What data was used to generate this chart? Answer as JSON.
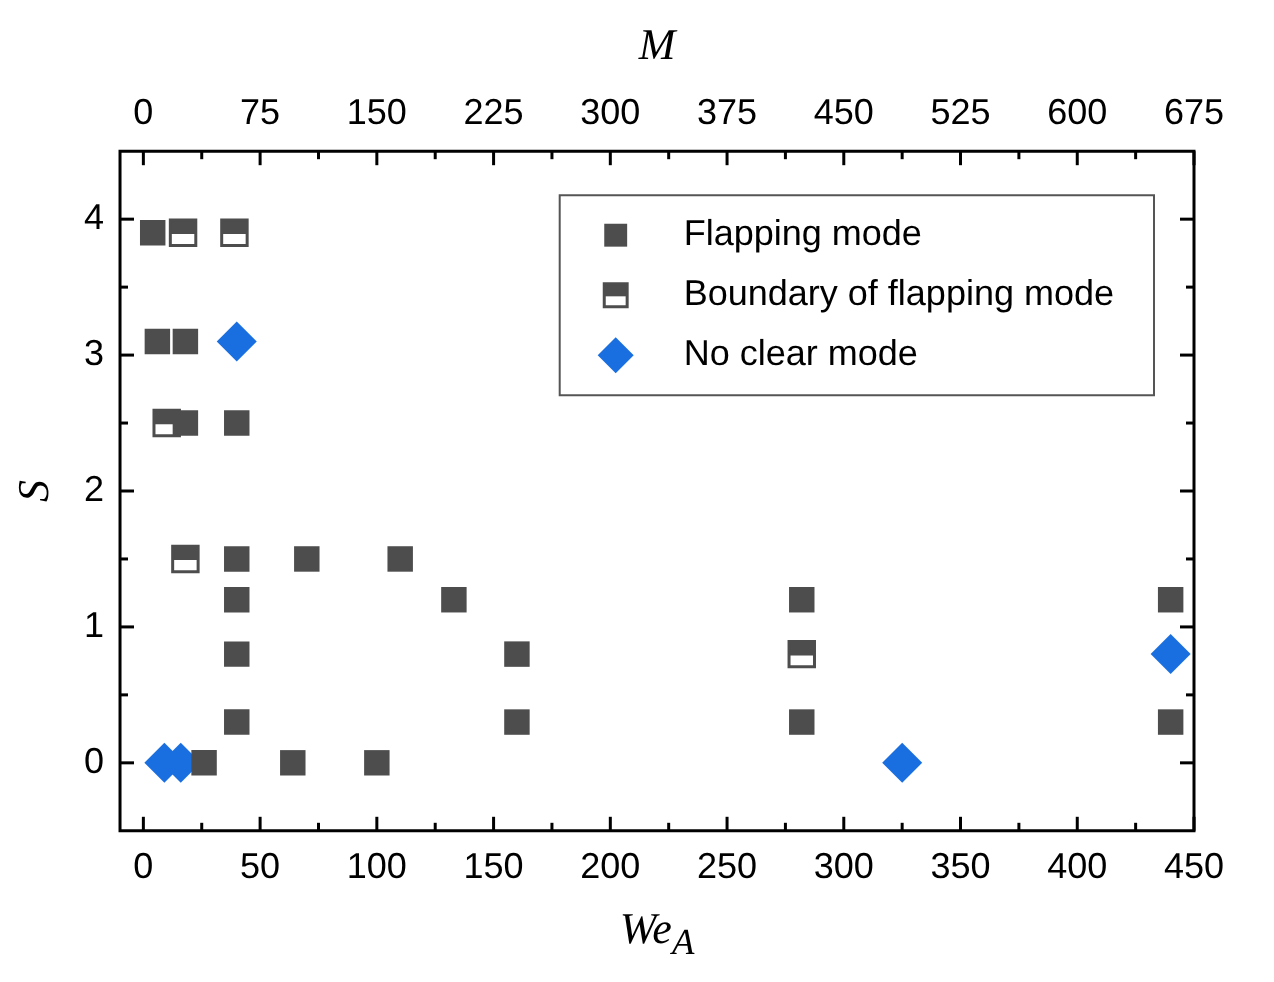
{
  "chart_data": {
    "type": "scatter",
    "xlabel": "We$_{A}$",
    "ylabel": "S",
    "x2label": "M",
    "xlim": [
      -10,
      450
    ],
    "xticks": [
      0,
      {
        "value": 25,
        "label": null
      },
      50,
      {
        "value": 75,
        "label": null
      },
      100,
      {
        "value": 125,
        "label": null
      },
      150,
      {
        "value": 175,
        "label": null
      },
      200,
      {
        "value": 225,
        "label": null
      },
      250,
      {
        "value": 275,
        "label": null
      },
      300,
      {
        "value": 325,
        "label": null
      },
      350,
      {
        "value": 375,
        "label": null
      },
      400,
      {
        "value": 425,
        "label": null
      },
      450
    ],
    "x2lim": [
      -15,
      675
    ],
    "x2ticks": [
      0,
      {
        "value": 37.5,
        "label": null
      },
      75,
      {
        "value": 112.5,
        "label": null
      },
      150,
      {
        "value": 187.5,
        "label": null
      },
      225,
      {
        "value": 262.5,
        "label": null
      },
      300,
      {
        "value": 337.5,
        "label": null
      },
      375,
      {
        "value": 412.5,
        "label": null
      },
      450,
      {
        "value": 487.5,
        "label": null
      },
      525,
      {
        "value": 562.5,
        "label": null
      },
      600,
      {
        "value": 637.5,
        "label": null
      },
      675
    ],
    "ylim": [
      -0.5,
      4.5
    ],
    "yticks": [
      0,
      {
        "value": 0.5,
        "label": null
      },
      1,
      {
        "value": 1.5,
        "label": null
      },
      2,
      {
        "value": 2.5,
        "label": null
      },
      3,
      {
        "value": 3.5,
        "label": null
      },
      4
    ],
    "grid": false,
    "legend": "top right",
    "series": [
      {
        "name": "Flapping mode",
        "color": "#4d4d4d",
        "marker": "square",
        "x": [
          4,
          6,
          18,
          18,
          40,
          40,
          70,
          110,
          40,
          133,
          40,
          160,
          40,
          160,
          26,
          64,
          100,
          282,
          440,
          282,
          440
        ],
        "values": [
          3.9,
          3.1,
          3.1,
          2.5,
          2.5,
          1.5,
          1.5,
          1.5,
          1.2,
          1.2,
          0.8,
          0.8,
          0.3,
          0.3,
          0,
          0,
          0,
          1.2,
          1.2,
          0.3,
          0.3
        ]
      },
      {
        "name": "Boundary of flapping mode",
        "color": "#4d4d4d",
        "marker": "square",
        "x": [
          17,
          39,
          10,
          18,
          282
        ],
        "values": [
          3.9,
          3.9,
          2.5,
          1.5,
          0.8
        ]
      },
      {
        "name": "No clear mode",
        "color": "#1a6fe0",
        "marker": "diamond",
        "x": [
          40,
          9,
          16,
          325,
          440
        ],
        "values": [
          3.1,
          0,
          0,
          0,
          0.8
        ]
      }
    ]
  }
}
